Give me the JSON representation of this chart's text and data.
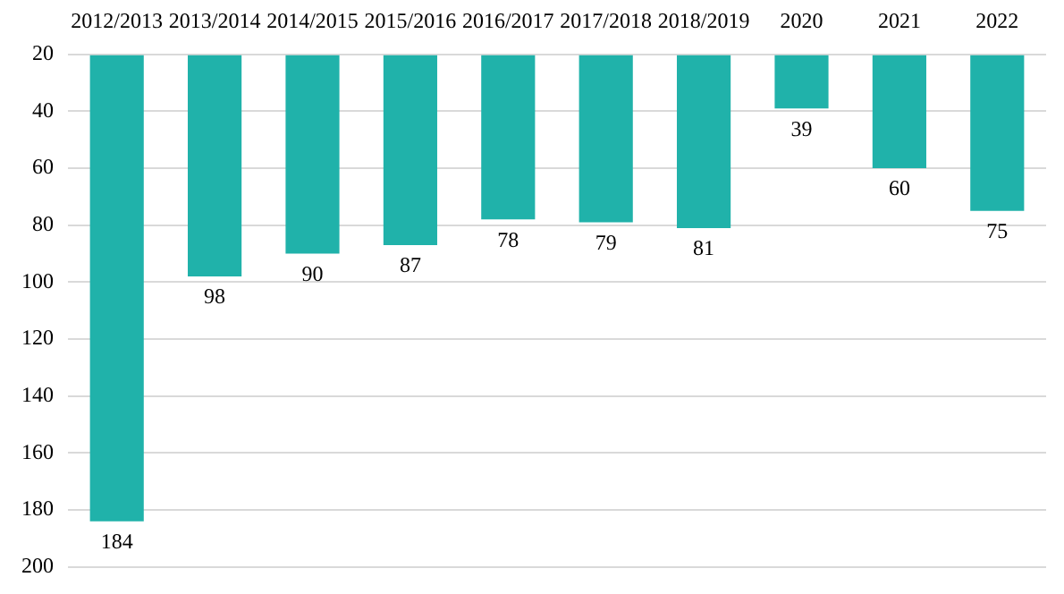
{
  "chart_data": {
    "type": "bar",
    "categories": [
      "2012/2013",
      "2013/2014",
      "2014/2015",
      "2015/2016",
      "2016/2017",
      "2017/2018",
      "2018/2019",
      "2020",
      "2021",
      "2022"
    ],
    "values": [
      184,
      98,
      90,
      87,
      78,
      79,
      81,
      39,
      60,
      75
    ],
    "color": "#20b2aa",
    "ylim": [
      200,
      20
    ],
    "yticks": [
      20,
      40,
      60,
      80,
      100,
      120,
      140,
      160,
      180,
      200
    ],
    "grid": "y",
    "data_labels": true,
    "legend": false
  }
}
